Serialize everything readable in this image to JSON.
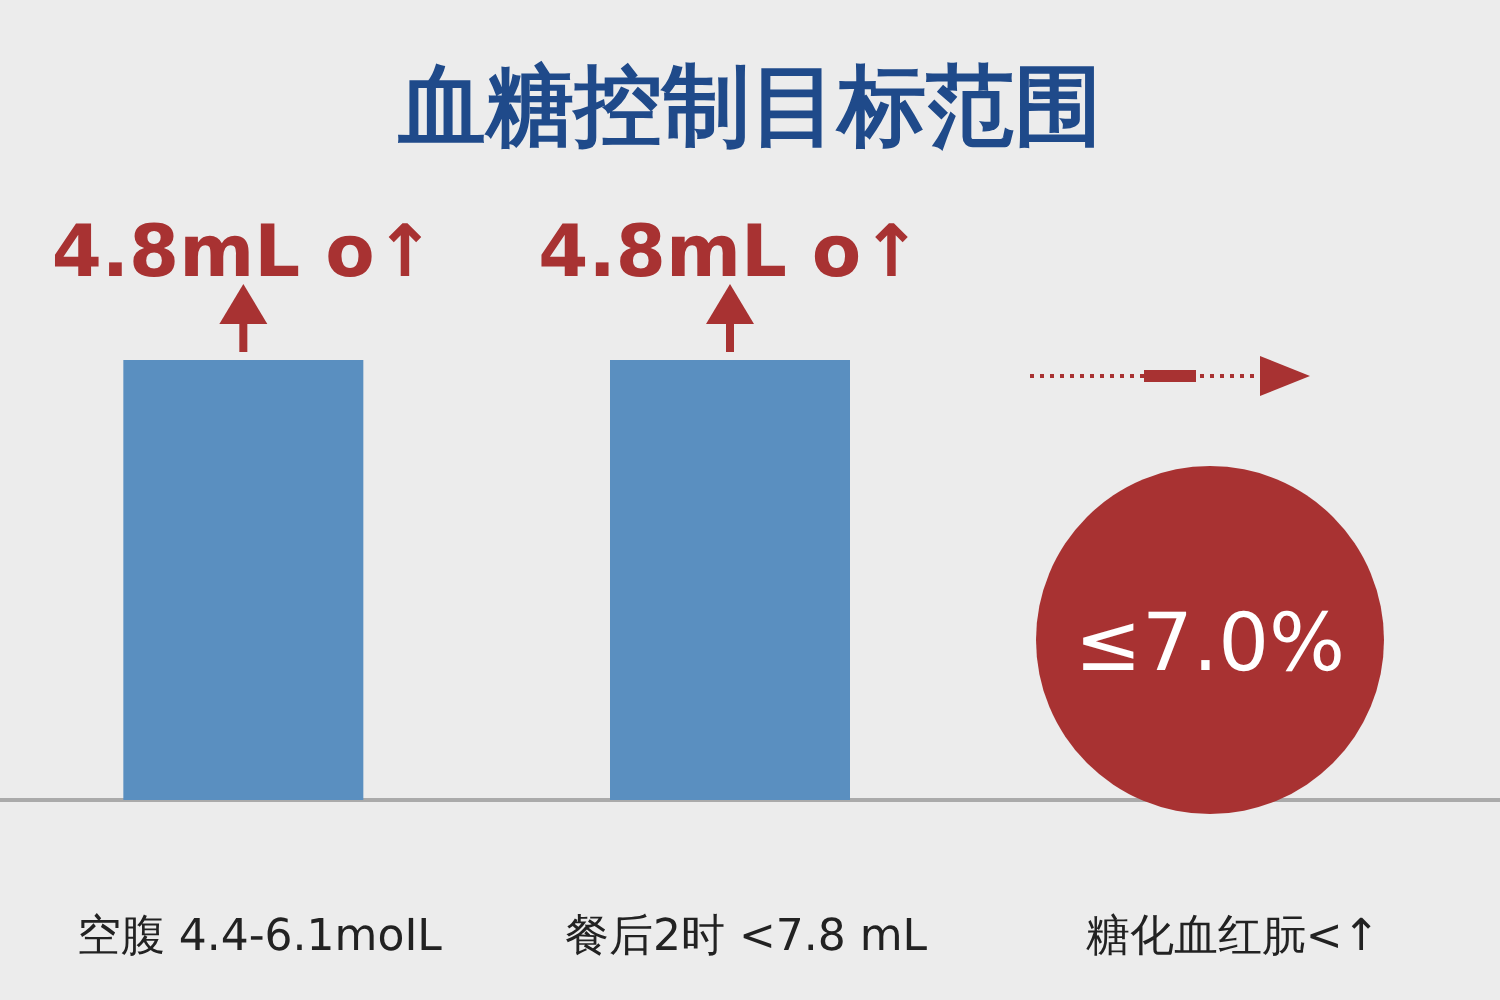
{
  "chart_data": {
    "type": "bar",
    "title": "血糖控制目标范围",
    "categories": [
      "空腹 4.4-6.1moIL",
      "餐后2时 <7.8 mL",
      "糖化血红朊<↑"
    ],
    "values": [
      4.8,
      4.8,
      null
    ],
    "color": "#5a8fc0",
    "value_labels": [
      "4.8mL o↑",
      "4.8mL o↑",
      null
    ],
    "annotations": [
      "≤7.0%"
    ]
  }
}
